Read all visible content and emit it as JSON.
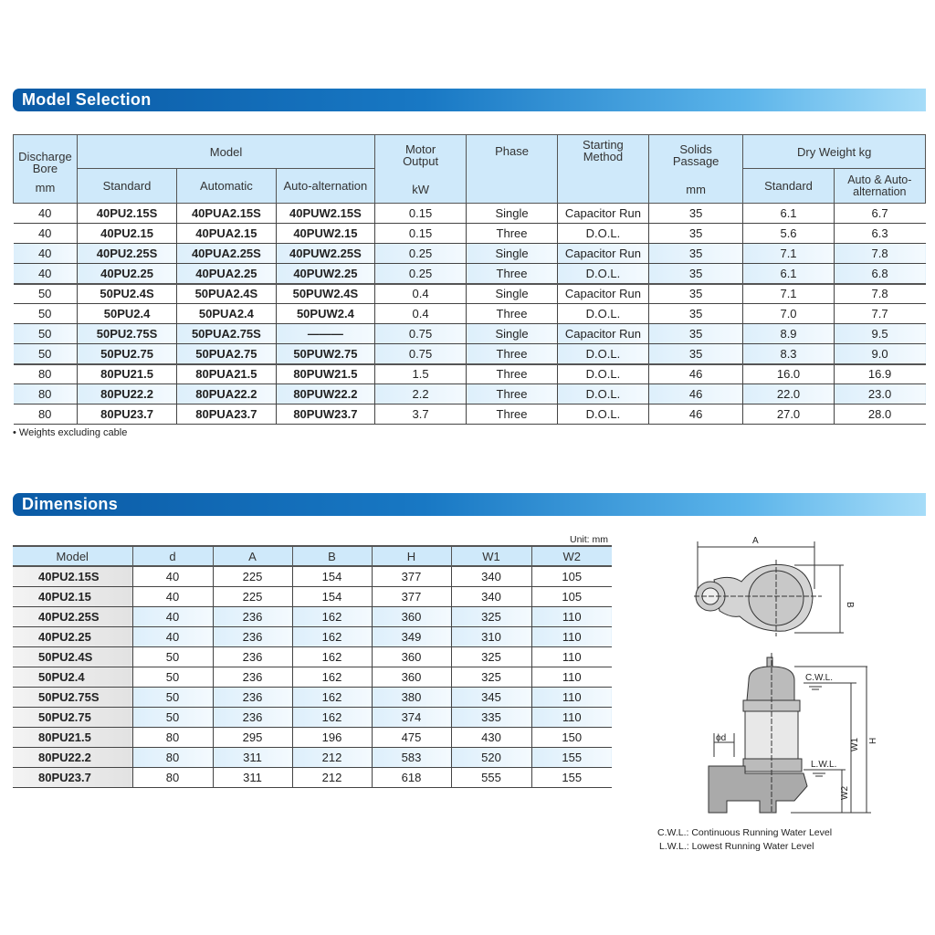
{
  "model_selection": {
    "title": "Model Selection",
    "headers": {
      "bore": "Discharge Bore",
      "bore_unit": "mm",
      "model": "Model",
      "standard": "Standard",
      "automatic": "Automatic",
      "auto_alt": "Auto-alternation",
      "motor": "Motor Output",
      "motor_unit": "kW",
      "phase": "Phase",
      "starting": "Starting Method",
      "solids": "Solids Passage",
      "solids_unit": "mm",
      "dry": "Dry Weight  kg",
      "dry_std": "Standard",
      "dry_auto": "Auto & Auto-alternation"
    },
    "rows": [
      [
        "40",
        "40PU2.15S",
        "40PUA2.15S",
        "40PUW2.15S",
        "0.15",
        "Single",
        "Capacitor Run",
        "35",
        "6.1",
        "6.7"
      ],
      [
        "40",
        "40PU2.15",
        "40PUA2.15",
        "40PUW2.15",
        "0.15",
        "Three",
        "D.O.L.",
        "35",
        "5.6",
        "6.3"
      ],
      [
        "40",
        "40PU2.25S",
        "40PUA2.25S",
        "40PUW2.25S",
        "0.25",
        "Single",
        "Capacitor Run",
        "35",
        "7.1",
        "7.8"
      ],
      [
        "40",
        "40PU2.25",
        "40PUA2.25",
        "40PUW2.25",
        "0.25",
        "Three",
        "D.O.L.",
        "35",
        "6.1",
        "6.8"
      ],
      [
        "50",
        "50PU2.4S",
        "50PUA2.4S",
        "50PUW2.4S",
        "0.4",
        "Single",
        "Capacitor Run",
        "35",
        "7.1",
        "7.8"
      ],
      [
        "50",
        "50PU2.4",
        "50PUA2.4",
        "50PUW2.4",
        "0.4",
        "Three",
        "D.O.L.",
        "35",
        "7.0",
        "7.7"
      ],
      [
        "50",
        "50PU2.75S",
        "50PUA2.75S",
        "———",
        "0.75",
        "Single",
        "Capacitor Run",
        "35",
        "8.9",
        "9.5"
      ],
      [
        "50",
        "50PU2.75",
        "50PUA2.75",
        "50PUW2.75",
        "0.75",
        "Three",
        "D.O.L.",
        "35",
        "8.3",
        "9.0"
      ],
      [
        "80",
        "80PU21.5",
        "80PUA21.5",
        "80PUW21.5",
        "1.5",
        "Three",
        "D.O.L.",
        "46",
        "16.0",
        "16.9"
      ],
      [
        "80",
        "80PU22.2",
        "80PUA22.2",
        "80PUW22.2",
        "2.2",
        "Three",
        "D.O.L.",
        "46",
        "22.0",
        "23.0"
      ],
      [
        "80",
        "80PU23.7",
        "80PUA23.7",
        "80PUW23.7",
        "3.7",
        "Three",
        "D.O.L.",
        "46",
        "27.0",
        "28.0"
      ]
    ],
    "note": "• Weights excluding cable"
  },
  "dimensions": {
    "title": "Dimensions",
    "unit": "Unit: mm",
    "headers": [
      "Model",
      "d",
      "A",
      "B",
      "H",
      "W1",
      "W2"
    ],
    "rows": [
      [
        "40PU2.15S",
        "40",
        "225",
        "154",
        "377",
        "340",
        "105"
      ],
      [
        "40PU2.15",
        "40",
        "225",
        "154",
        "377",
        "340",
        "105"
      ],
      [
        "40PU2.25S",
        "40",
        "236",
        "162",
        "360",
        "325",
        "110"
      ],
      [
        "40PU2.25",
        "40",
        "236",
        "162",
        "349",
        "310",
        "110"
      ],
      [
        "50PU2.4S",
        "50",
        "236",
        "162",
        "360",
        "325",
        "110"
      ],
      [
        "50PU2.4",
        "50",
        "236",
        "162",
        "360",
        "325",
        "110"
      ],
      [
        "50PU2.75S",
        "50",
        "236",
        "162",
        "380",
        "345",
        "110"
      ],
      [
        "50PU2.75",
        "50",
        "236",
        "162",
        "374",
        "335",
        "110"
      ],
      [
        "80PU21.5",
        "80",
        "295",
        "196",
        "475",
        "430",
        "150"
      ],
      [
        "80PU22.2",
        "80",
        "311",
        "212",
        "583",
        "520",
        "155"
      ],
      [
        "80PU23.7",
        "80",
        "311",
        "212",
        "618",
        "555",
        "155"
      ]
    ],
    "diagram": {
      "a": "A",
      "b": "B",
      "h": "H",
      "w1": "W1",
      "w2": "W2",
      "d": "ϕd",
      "cwl": "C.W.L.",
      "lwl": "L.W.L.",
      "legend": [
        "C.W.L.: Continuous Running Water Level",
        "L.W.L.: Lowest Running Water Level"
      ]
    }
  }
}
